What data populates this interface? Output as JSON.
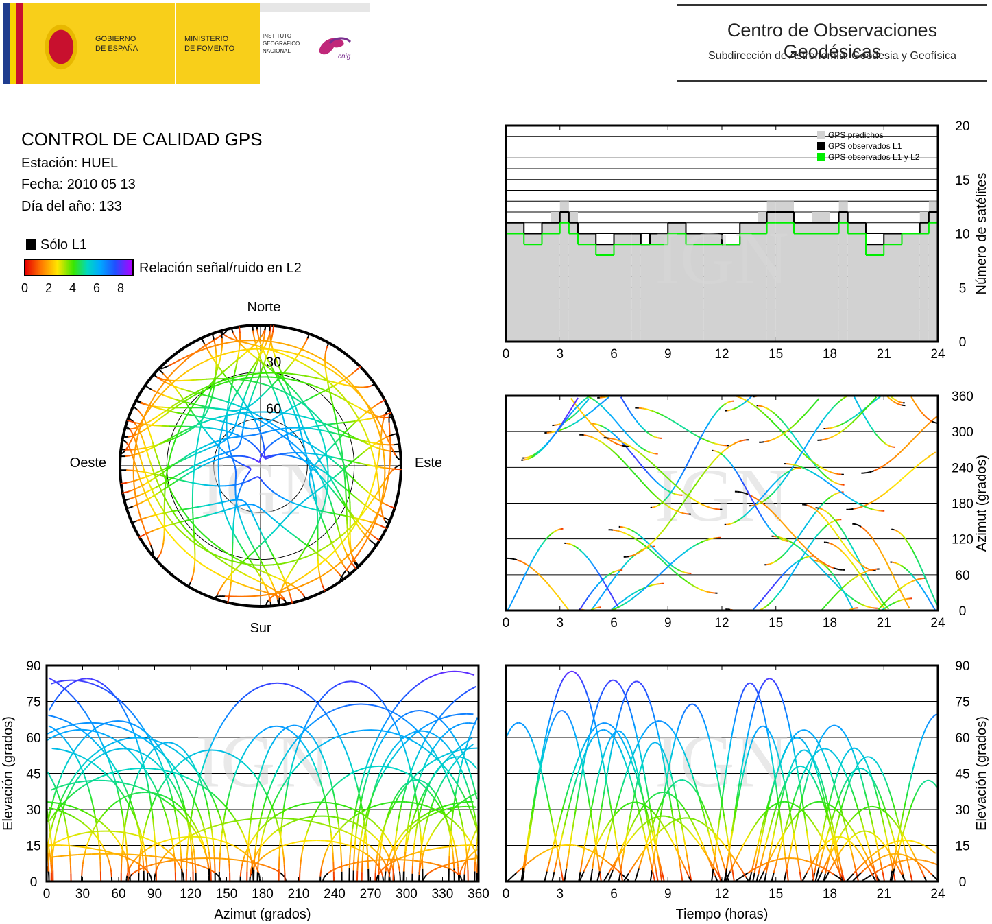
{
  "header": {
    "gobierno": [
      "GOBIERNO",
      "DE ESPAÑA"
    ],
    "ministerio": [
      "MINISTERIO",
      "DE FOMENTO"
    ],
    "instituto": [
      "INSTITUTO",
      "GEOGRÁFICO",
      "NACIONAL"
    ],
    "cnig": "cnig",
    "center_title": "Centro de Observaciones Geodésicas",
    "center_subtitle": "Subdirección de Astronomía, Geodesia y Geofísica"
  },
  "info": {
    "title": "CONTROL DE CALIDAD GPS",
    "station": "Estación: HUEL",
    "date": "Fecha: 2010 05 13",
    "doy": "Día del año: 133",
    "only_l1": "Sólo L1",
    "snr_label": "Relación señal/ruido en L2",
    "snr_ticks": [
      "0",
      "2",
      "4",
      "6",
      "8"
    ]
  },
  "watermark": "IGN",
  "colors": {
    "predicted": "#d2d2d2",
    "observed_l1": "#000000",
    "observed_l1l2": "#00ee00",
    "colormap": [
      "#e60000",
      "#ff7a00",
      "#ffe600",
      "#39e600",
      "#00d8c0",
      "#00a8ff",
      "#2050ff",
      "#b000ff"
    ]
  },
  "chart_data": [
    {
      "id": "skyplot",
      "type": "scatter",
      "title": "",
      "directions": {
        "north": "Norte",
        "south": "Sur",
        "east": "Este",
        "west": "Oeste"
      },
      "elevation_rings": [
        "30",
        "60"
      ]
    },
    {
      "id": "satcount",
      "type": "area",
      "ylabel": "Número de satélites",
      "xlim": [
        0,
        24
      ],
      "ylim": [
        0,
        20
      ],
      "xticks": [
        "0",
        "3",
        "6",
        "9",
        "12",
        "15",
        "18",
        "21",
        "24"
      ],
      "yticks": [
        "0",
        "5",
        "10",
        "15",
        "20"
      ],
      "legend": [
        "GPS predichos",
        "GPS observados L1",
        "GPS observados L1 y L2"
      ],
      "legend_position": "top-right",
      "x": [
        0,
        1,
        2,
        2.5,
        3,
        3.5,
        4,
        5,
        6,
        7,
        7.5,
        8,
        9,
        10,
        11,
        12,
        13,
        14,
        14.5,
        15,
        16,
        17,
        18,
        18.5,
        19,
        20,
        21,
        22,
        23,
        23.5,
        24
      ],
      "series": [
        {
          "name": "GPS predichos",
          "values": [
            11,
            10,
            11,
            12,
            13,
            12,
            10,
            9,
            10,
            10,
            9,
            10,
            11,
            10,
            10,
            9,
            11,
            12,
            13,
            13,
            11,
            12,
            11,
            13,
            11,
            9,
            10,
            10,
            12,
            13,
            11
          ]
        },
        {
          "name": "GPS observados L1",
          "values": [
            11,
            10,
            11,
            11,
            12,
            11,
            10,
            9,
            10,
            10,
            9,
            10,
            11,
            10,
            10,
            9,
            11,
            11,
            12,
            12,
            11,
            11,
            11,
            12,
            11,
            9,
            10,
            10,
            11,
            12,
            11
          ]
        },
        {
          "name": "GPS observados L1 y L2",
          "values": [
            10,
            9,
            10,
            10,
            11,
            10,
            9,
            8,
            9,
            9,
            9,
            9,
            10,
            9,
            9,
            9,
            10,
            10,
            11,
            11,
            10,
            10,
            10,
            11,
            10,
            8,
            9,
            10,
            10,
            11,
            10
          ]
        }
      ]
    },
    {
      "id": "azimuth_time",
      "type": "scatter",
      "ylabel": "Azimut (grados)",
      "xlim": [
        0,
        24
      ],
      "ylim": [
        0,
        360
      ],
      "xticks": [
        "0",
        "3",
        "6",
        "9",
        "12",
        "15",
        "18",
        "21",
        "24"
      ],
      "yticks": [
        "0",
        "60",
        "120",
        "180",
        "240",
        "300",
        "360"
      ]
    },
    {
      "id": "elev_azimuth",
      "type": "scatter",
      "xlabel": "Azimut (grados)",
      "ylabel": "Elevación (grados)",
      "xlim": [
        0,
        360
      ],
      "ylim": [
        0,
        90
      ],
      "xticks": [
        "0",
        "30",
        "60",
        "90",
        "120",
        "150",
        "180",
        "210",
        "240",
        "270",
        "300",
        "330",
        "360"
      ],
      "yticks": [
        "0",
        "15",
        "30",
        "45",
        "60",
        "75",
        "90"
      ]
    },
    {
      "id": "elev_time",
      "type": "scatter",
      "xlabel": "Tiempo (horas)",
      "ylabel": "Elevación (grados)",
      "xlim": [
        0,
        24
      ],
      "ylim": [
        0,
        90
      ],
      "xticks": [
        "0",
        "3",
        "6",
        "9",
        "12",
        "15",
        "18",
        "21",
        "24"
      ],
      "yticks": [
        "0",
        "15",
        "30",
        "45",
        "60",
        "75",
        "90"
      ]
    }
  ]
}
